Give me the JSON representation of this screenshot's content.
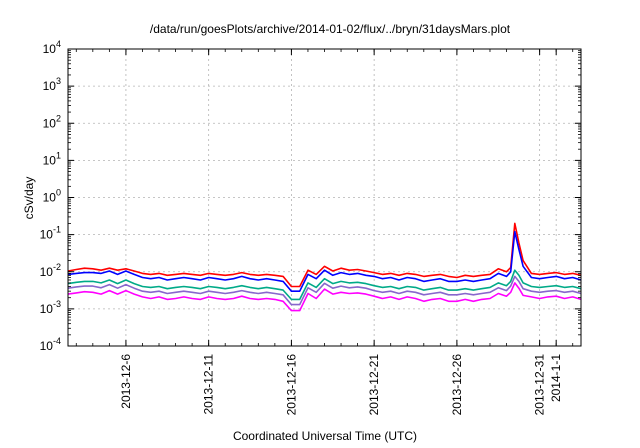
{
  "chart_data": {
    "type": "line",
    "title": "/data/run/goesPlots/archive/2014-01-02/flux/../bryn/31daysMars.plot",
    "xlabel": "Coordinated Universal Time (UTC)",
    "ylabel": "cSv/day",
    "y_scale": "log",
    "ylim": [
      0.0001,
      10000
    ],
    "y_ticks": [
      {
        "value": 0.0001,
        "base": "10",
        "exp": "-4"
      },
      {
        "value": 0.001,
        "base": "10",
        "exp": "-3"
      },
      {
        "value": 0.01,
        "base": "10",
        "exp": "-2"
      },
      {
        "value": 0.1,
        "base": "10",
        "exp": "-1"
      },
      {
        "value": 1,
        "base": "10",
        "exp": "0"
      },
      {
        "value": 10,
        "base": "10",
        "exp": "1"
      },
      {
        "value": 100,
        "base": "10",
        "exp": "2"
      },
      {
        "value": 1000,
        "base": "10",
        "exp": "3"
      },
      {
        "value": 10000,
        "base": "10",
        "exp": "4"
      }
    ],
    "xlim": [
      "2013-12-02T12:00",
      "2014-01-02T12:00"
    ],
    "x_ticks": [
      {
        "value": "2013-12-06",
        "label": "2013-12-6"
      },
      {
        "value": "2013-12-11",
        "label": "2013-12-11"
      },
      {
        "value": "2013-12-16",
        "label": "2013-12-16"
      },
      {
        "value": "2013-12-21",
        "label": "2013-12-21"
      },
      {
        "value": "2013-12-26",
        "label": "2013-12-26"
      },
      {
        "value": "2013-12-31",
        "label": "2013-12-31"
      },
      {
        "value": "2014-01-01",
        "label": "2014-1-1"
      }
    ],
    "x": [
      "2013-12-02T12:00",
      "2013-12-03",
      "2013-12-03T12:00",
      "2013-12-04",
      "2013-12-04T12:00",
      "2013-12-05",
      "2013-12-05T12:00",
      "2013-12-06",
      "2013-12-06T12:00",
      "2013-12-07",
      "2013-12-07T12:00",
      "2013-12-08",
      "2013-12-08T12:00",
      "2013-12-09",
      "2013-12-09T12:00",
      "2013-12-10",
      "2013-12-10T12:00",
      "2013-12-11",
      "2013-12-11T12:00",
      "2013-12-12",
      "2013-12-12T12:00",
      "2013-12-13",
      "2013-12-13T12:00",
      "2013-12-14",
      "2013-12-14T12:00",
      "2013-12-15",
      "2013-12-15T12:00",
      "2013-12-16",
      "2013-12-16T12:00",
      "2013-12-17",
      "2013-12-17T12:00",
      "2013-12-18",
      "2013-12-18T12:00",
      "2013-12-19",
      "2013-12-19T12:00",
      "2013-12-20",
      "2013-12-20T12:00",
      "2013-12-21",
      "2013-12-21T12:00",
      "2013-12-22",
      "2013-12-22T12:00",
      "2013-12-23",
      "2013-12-23T12:00",
      "2013-12-24",
      "2013-12-24T12:00",
      "2013-12-25",
      "2013-12-25T12:00",
      "2013-12-26",
      "2013-12-26T12:00",
      "2013-12-27",
      "2013-12-27T12:00",
      "2013-12-28",
      "2013-12-28T12:00",
      "2013-12-29",
      "2013-12-29T06:00",
      "2013-12-29T12:00",
      "2013-12-29T18:00",
      "2013-12-30",
      "2013-12-30T12:00",
      "2013-12-31",
      "2013-12-31T12:00",
      "2014-01-01",
      "2014-01-01T12:00",
      "2014-01-02",
      "2014-01-02T12:00"
    ],
    "grid": true,
    "legend": "none",
    "series": [
      {
        "color": "#ff0000",
        "values": [
          0.0105,
          0.0115,
          0.0125,
          0.012,
          0.011,
          0.0125,
          0.011,
          0.012,
          0.0105,
          0.009,
          0.0085,
          0.009,
          0.008,
          0.0085,
          0.009,
          0.0085,
          0.008,
          0.009,
          0.0085,
          0.008,
          0.0085,
          0.0095,
          0.0085,
          0.008,
          0.0085,
          0.008,
          0.0075,
          0.004,
          0.004,
          0.011,
          0.0085,
          0.014,
          0.0105,
          0.0125,
          0.011,
          0.0115,
          0.0105,
          0.0095,
          0.0085,
          0.009,
          0.008,
          0.009,
          0.0085,
          0.0075,
          0.008,
          0.0085,
          0.0075,
          0.007,
          0.008,
          0.0075,
          0.008,
          0.0085,
          0.012,
          0.01,
          0.013,
          0.2,
          0.06,
          0.02,
          0.009,
          0.0085,
          0.009,
          0.0095,
          0.0085,
          0.009,
          0.008
        ]
      },
      {
        "color": "#0000ff",
        "values": [
          0.0085,
          0.009,
          0.0095,
          0.0095,
          0.009,
          0.0105,
          0.0085,
          0.0105,
          0.0085,
          0.007,
          0.0065,
          0.007,
          0.006,
          0.0065,
          0.007,
          0.0065,
          0.006,
          0.007,
          0.0065,
          0.006,
          0.0065,
          0.0075,
          0.0065,
          0.006,
          0.0065,
          0.006,
          0.0055,
          0.003,
          0.003,
          0.0085,
          0.0065,
          0.011,
          0.008,
          0.0095,
          0.0085,
          0.009,
          0.008,
          0.0075,
          0.0065,
          0.007,
          0.006,
          0.007,
          0.0065,
          0.0055,
          0.006,
          0.0065,
          0.0055,
          0.0055,
          0.006,
          0.0055,
          0.006,
          0.0065,
          0.009,
          0.0075,
          0.01,
          0.12,
          0.04,
          0.014,
          0.007,
          0.0065,
          0.007,
          0.0075,
          0.0065,
          0.007,
          0.006
        ]
      },
      {
        "color": "#00aa88",
        "values": [
          0.0048,
          0.0052,
          0.0055,
          0.0055,
          0.005,
          0.006,
          0.0048,
          0.006,
          0.0048,
          0.004,
          0.0038,
          0.004,
          0.0035,
          0.0038,
          0.004,
          0.0038,
          0.0035,
          0.004,
          0.0038,
          0.0035,
          0.0038,
          0.0042,
          0.0038,
          0.0035,
          0.0038,
          0.0035,
          0.0032,
          0.0018,
          0.0018,
          0.005,
          0.0038,
          0.0065,
          0.0048,
          0.0055,
          0.005,
          0.0052,
          0.0048,
          0.0042,
          0.0038,
          0.004,
          0.0035,
          0.004,
          0.0038,
          0.0032,
          0.0035,
          0.0038,
          0.0032,
          0.0032,
          0.0035,
          0.0032,
          0.0035,
          0.0038,
          0.005,
          0.0042,
          0.0055,
          0.011,
          0.008,
          0.005,
          0.004,
          0.0038,
          0.004,
          0.0042,
          0.0038,
          0.004,
          0.0035
        ]
      },
      {
        "color": "#8866cc",
        "values": [
          0.0036,
          0.0039,
          0.0041,
          0.0041,
          0.0037,
          0.0045,
          0.0036,
          0.0045,
          0.0036,
          0.003,
          0.0028,
          0.003,
          0.0026,
          0.0028,
          0.003,
          0.0028,
          0.0026,
          0.003,
          0.0028,
          0.0026,
          0.0028,
          0.0031,
          0.0028,
          0.0026,
          0.0028,
          0.0026,
          0.0024,
          0.0013,
          0.0013,
          0.0037,
          0.0028,
          0.0049,
          0.0036,
          0.0041,
          0.0037,
          0.0039,
          0.0036,
          0.0031,
          0.0028,
          0.003,
          0.0026,
          0.003,
          0.0028,
          0.0024,
          0.0026,
          0.0028,
          0.0024,
          0.0024,
          0.0026,
          0.0024,
          0.0026,
          0.0028,
          0.0037,
          0.0031,
          0.0041,
          0.0075,
          0.0055,
          0.0035,
          0.003,
          0.0028,
          0.003,
          0.0031,
          0.0028,
          0.003,
          0.0026
        ]
      },
      {
        "color": "#ff00ff",
        "values": [
          0.0025,
          0.0027,
          0.0029,
          0.0028,
          0.0025,
          0.0031,
          0.0025,
          0.0031,
          0.0025,
          0.0021,
          0.0019,
          0.0021,
          0.0018,
          0.0019,
          0.0021,
          0.0019,
          0.0018,
          0.0021,
          0.0019,
          0.0018,
          0.0019,
          0.0022,
          0.0019,
          0.0018,
          0.0019,
          0.0018,
          0.0016,
          0.0009,
          0.0009,
          0.0026,
          0.0019,
          0.0034,
          0.0025,
          0.0028,
          0.0026,
          0.0027,
          0.0025,
          0.0022,
          0.0019,
          0.0021,
          0.0018,
          0.0021,
          0.0019,
          0.0016,
          0.0018,
          0.0019,
          0.0016,
          0.0016,
          0.0018,
          0.0016,
          0.0018,
          0.0019,
          0.0026,
          0.0022,
          0.0028,
          0.005,
          0.0036,
          0.0023,
          0.0021,
          0.0019,
          0.0021,
          0.0022,
          0.0019,
          0.0021,
          0.0018
        ]
      }
    ]
  }
}
